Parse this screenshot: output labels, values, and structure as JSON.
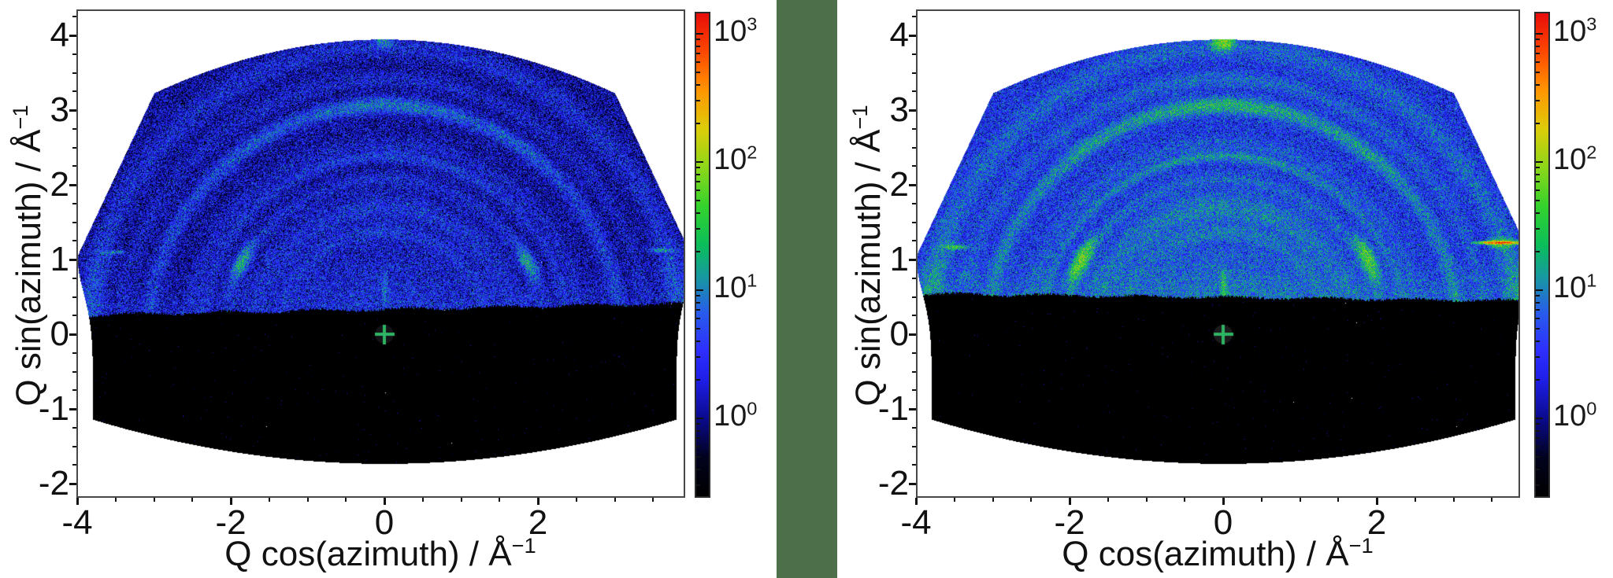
{
  "figure": {
    "background_color": "#ffffff",
    "divider_color": "#4d6f4a"
  },
  "colormap": {
    "scale": "log",
    "log_min": -0.62,
    "log_max": 3.17,
    "stops": [
      [
        0,
        0,
        0,
        0
      ],
      [
        0.08,
        2,
        2,
        30
      ],
      [
        0.16,
        10,
        10,
        140
      ],
      [
        0.24,
        30,
        30,
        230
      ],
      [
        0.3,
        46,
        46,
        255
      ],
      [
        0.38,
        40,
        92,
        235
      ],
      [
        0.45,
        24,
        150,
        165
      ],
      [
        0.52,
        10,
        190,
        90
      ],
      [
        0.6,
        52,
        210,
        45
      ],
      [
        0.68,
        140,
        215,
        25
      ],
      [
        0.76,
        220,
        205,
        10
      ],
      [
        0.84,
        255,
        150,
        0
      ],
      [
        0.92,
        255,
        72,
        0
      ],
      [
        1,
        232,
        12,
        10
      ]
    ]
  },
  "detector_outline": {
    "apex_qy": 3.95,
    "top_curv": 0.08,
    "corner_qx": 3.0,
    "corner_qy": 3.23,
    "side_qx": 4.0,
    "side_qy": 1.05,
    "low_side_qx": 3.8,
    "low_side_bulge": 0.2,
    "low_side_sigma": 0.7,
    "bottom_qy": -1.73,
    "bottom_curv": 0.041
  },
  "chart_data": [
    {
      "type": "heatmap",
      "title": "",
      "xlabel_base": "Q cos(azimuth) / Å",
      "xlabel_sup": "−1",
      "ylabel_base": "Q sin(azimuth) / Å",
      "ylabel_sup": "−1",
      "xlim": [
        -4.05,
        3.92
      ],
      "ylim": [
        -2.19,
        4.35
      ],
      "x_tick_labels": [
        {
          "v": -4,
          "label": "-4"
        },
        {
          "v": -2,
          "label": "-2"
        },
        {
          "v": 0,
          "label": "0"
        },
        {
          "v": 2,
          "label": "2"
        }
      ],
      "y_tick_labels": [
        {
          "v": -2,
          "label": "-2"
        },
        {
          "v": -1,
          "label": "-1"
        },
        {
          "v": 0,
          "label": "0"
        },
        {
          "v": 1,
          "label": "1"
        },
        {
          "v": 2,
          "label": "2"
        },
        {
          "v": 3,
          "label": "3"
        },
        {
          "v": 4,
          "label": "4"
        }
      ],
      "x_minor_step": 0.5,
      "y_minor_step": 0.25,
      "colorbar": {
        "scale": "log",
        "tick_labels": [
          {
            "exp": 3,
            "base": "10",
            "sup": "3"
          },
          {
            "exp": 2,
            "base": "10",
            "sup": "2"
          },
          {
            "exp": 1,
            "base": "10",
            "sup": "1"
          },
          {
            "exp": 0,
            "base": "10",
            "sup": "0"
          }
        ]
      },
      "beam_center": {
        "qx": 0,
        "qy": 0,
        "marker": "cross",
        "color": "#2eb463",
        "disc_color": "#131318"
      },
      "mask": {
        "qy0": 0.34,
        "slope": 0.02,
        "wave": 0.018,
        "level": 0.02,
        "speck_prob": 0.002
      },
      "background": {
        "base": 1.12,
        "glow_amp": 1.2,
        "glow_sigma": 1.1,
        "horizon_glow": 0.5
      },
      "noise_mult": 1.0,
      "hot_pixel_prob": 2e-05,
      "seed": 101,
      "rings": [
        {
          "q": 1.38,
          "w": 0.09,
          "amp": 0.85,
          "bumps": [
            {
              "az": 90,
              "s": 35,
              "amp": 0.6
            }
          ]
        },
        {
          "q": 1.7,
          "w": 0.16,
          "amp": 0.8,
          "bumps": [
            {
              "az": 90,
              "s": 45,
              "amp": 0.5
            }
          ]
        },
        {
          "q": 2.08,
          "w": 0.08,
          "amp": 1.0,
          "bumps": []
        },
        {
          "q": 2.39,
          "w": 0.07,
          "amp": 1.1,
          "bumps": [
            {
              "az": 90,
              "s": 35,
              "amp": 1.1
            }
          ]
        },
        {
          "q": 2.56,
          "w": 0.09,
          "amp": 0.7,
          "bumps": []
        },
        {
          "q": 3.07,
          "w": 0.09,
          "amp": 2.2,
          "bumps": [
            {
              "az": 90,
              "s": 18,
              "amp": 4.5
            },
            {
              "az": 55,
              "s": 10,
              "amp": 1.8
            },
            {
              "az": 125,
              "s": 10,
              "amp": 1.8
            }
          ]
        },
        {
          "q": 3.42,
          "w": 0.1,
          "amp": 0.6,
          "bumps": [
            {
              "az": 90,
              "s": 30,
              "amp": 0.5
            }
          ]
        },
        {
          "q": 3.85,
          "w": 0.14,
          "amp": 1.2,
          "bumps": [
            {
              "az": 172,
              "s": 10,
              "amp": 2.0
            },
            {
              "az": 8,
              "s": 10,
              "amp": 2.0
            }
          ]
        }
      ],
      "spots": [
        {
          "qx": -1.86,
          "qy": 0.97,
          "sx": 0.2,
          "sy": 0.065,
          "rot": 63,
          "amp": 16
        },
        {
          "qx": 1.86,
          "qy": 0.97,
          "sx": 0.2,
          "sy": 0.065,
          "rot": 117,
          "amp": 12
        },
        {
          "qx": 0.0,
          "qy": 3.92,
          "sx": 0.1,
          "sy": 0.08,
          "rot": 0,
          "amp": 9
        },
        {
          "qx": -3.55,
          "qy": 1.1,
          "sx": 0.13,
          "sy": 0.022,
          "rot": 0,
          "amp": 9
        },
        {
          "qx": 3.62,
          "qy": 1.13,
          "sx": 0.15,
          "sy": 0.022,
          "rot": 0,
          "amp": 11
        },
        {
          "qx": 0.0,
          "qy": 0.62,
          "sx": 0.22,
          "sy": 0.035,
          "rot": 90,
          "amp": 5
        }
      ]
    },
    {
      "type": "heatmap",
      "title": "",
      "xlabel_base": "Q cos(azimuth) / Å",
      "xlabel_sup": "−1",
      "ylabel_base": "Q sin(azimuth) / Å",
      "ylabel_sup": "−1",
      "xlim": [
        -4.0,
        3.87
      ],
      "ylim": [
        -2.19,
        4.35
      ],
      "x_tick_labels": [
        {
          "v": -4,
          "label": "-4"
        },
        {
          "v": -2,
          "label": "-2"
        },
        {
          "v": 0,
          "label": "0"
        },
        {
          "v": 2,
          "label": "2"
        }
      ],
      "y_tick_labels": [
        {
          "v": -2,
          "label": "-2"
        },
        {
          "v": -1,
          "label": "-1"
        },
        {
          "v": 0,
          "label": "0"
        },
        {
          "v": 1,
          "label": "1"
        },
        {
          "v": 2,
          "label": "2"
        },
        {
          "v": 3,
          "label": "3"
        },
        {
          "v": 4,
          "label": "4"
        }
      ],
      "x_minor_step": 0.5,
      "y_minor_step": 0.25,
      "colorbar": {
        "scale": "log",
        "tick_labels": [
          {
            "exp": 3,
            "base": "10",
            "sup": "3"
          },
          {
            "exp": 2,
            "base": "10",
            "sup": "2"
          },
          {
            "exp": 1,
            "base": "10",
            "sup": "1"
          },
          {
            "exp": 0,
            "base": "10",
            "sup": "0"
          }
        ]
      },
      "beam_center": {
        "qx": 0,
        "qy": 0,
        "marker": "cross",
        "color": "#2eb463",
        "disc_color": "#1b1b1b"
      },
      "mask": {
        "qy0": 0.5,
        "slope": -0.012,
        "wave": 0.015,
        "level": 0.02,
        "speck_prob": 0.002
      },
      "background": {
        "base": 3.0,
        "glow_amp": 4.0,
        "glow_sigma": 1.1,
        "horizon_glow": 2.2
      },
      "noise_mult": 0.92,
      "hot_pixel_prob": 2e-05,
      "seed": 202,
      "rings": [
        {
          "q": 1.38,
          "w": 0.09,
          "amp": 2.6,
          "bumps": [
            {
              "az": 90,
              "s": 35,
              "amp": 1.8
            }
          ]
        },
        {
          "q": 1.7,
          "w": 0.17,
          "amp": 2.6,
          "bumps": [
            {
              "az": 90,
              "s": 45,
              "amp": 3.2
            }
          ]
        },
        {
          "q": 2.08,
          "w": 0.08,
          "amp": 2.8,
          "bumps": [
            {
              "az": 25,
              "s": 12,
              "amp": 2.0
            },
            {
              "az": 155,
              "s": 12,
              "amp": 2.0
            }
          ]
        },
        {
          "q": 2.39,
          "w": 0.06,
          "amp": 3.2,
          "bumps": [
            {
              "az": 90,
              "s": 35,
              "amp": 5.5
            }
          ]
        },
        {
          "q": 2.56,
          "w": 0.09,
          "amp": 2.0,
          "bumps": []
        },
        {
          "q": 3.07,
          "w": 0.09,
          "amp": 6.0,
          "bumps": [
            {
              "az": 90,
              "s": 18,
              "amp": 13
            },
            {
              "az": 55,
              "s": 10,
              "amp": 5
            },
            {
              "az": 125,
              "s": 10,
              "amp": 5
            }
          ]
        },
        {
          "q": 3.42,
          "w": 0.1,
          "amp": 2.0,
          "bumps": [
            {
              "az": 90,
              "s": 30,
              "amp": 1.8
            }
          ]
        },
        {
          "q": 3.85,
          "w": 0.14,
          "amp": 3.2,
          "bumps": [
            {
              "az": 172,
              "s": 10,
              "amp": 6
            },
            {
              "az": 8,
              "s": 10,
              "amp": 6
            }
          ]
        }
      ],
      "spots": [
        {
          "qx": -1.85,
          "qy": 0.99,
          "sx": 0.22,
          "sy": 0.07,
          "rot": 63,
          "amp": 55
        },
        {
          "qx": 1.88,
          "qy": 1.02,
          "sx": 0.22,
          "sy": 0.07,
          "rot": 115,
          "amp": 42
        },
        {
          "qx": 0.0,
          "qy": 3.92,
          "sx": 0.11,
          "sy": 0.09,
          "rot": 0,
          "amp": 70
        },
        {
          "qx": -3.5,
          "qy": 1.17,
          "sx": 0.14,
          "sy": 0.025,
          "rot": 0,
          "amp": 28
        },
        {
          "qx": 3.61,
          "qy": 1.23,
          "sx": 0.17,
          "sy": 0.015,
          "rot": 0,
          "amp": 780
        },
        {
          "qx": 3.61,
          "qy": 1.23,
          "sx": 0.12,
          "sy": 0.06,
          "rot": 0,
          "amp": 30
        },
        {
          "qx": 0.0,
          "qy": 0.62,
          "sx": 0.22,
          "sy": 0.035,
          "rot": 90,
          "amp": 18
        }
      ]
    }
  ]
}
